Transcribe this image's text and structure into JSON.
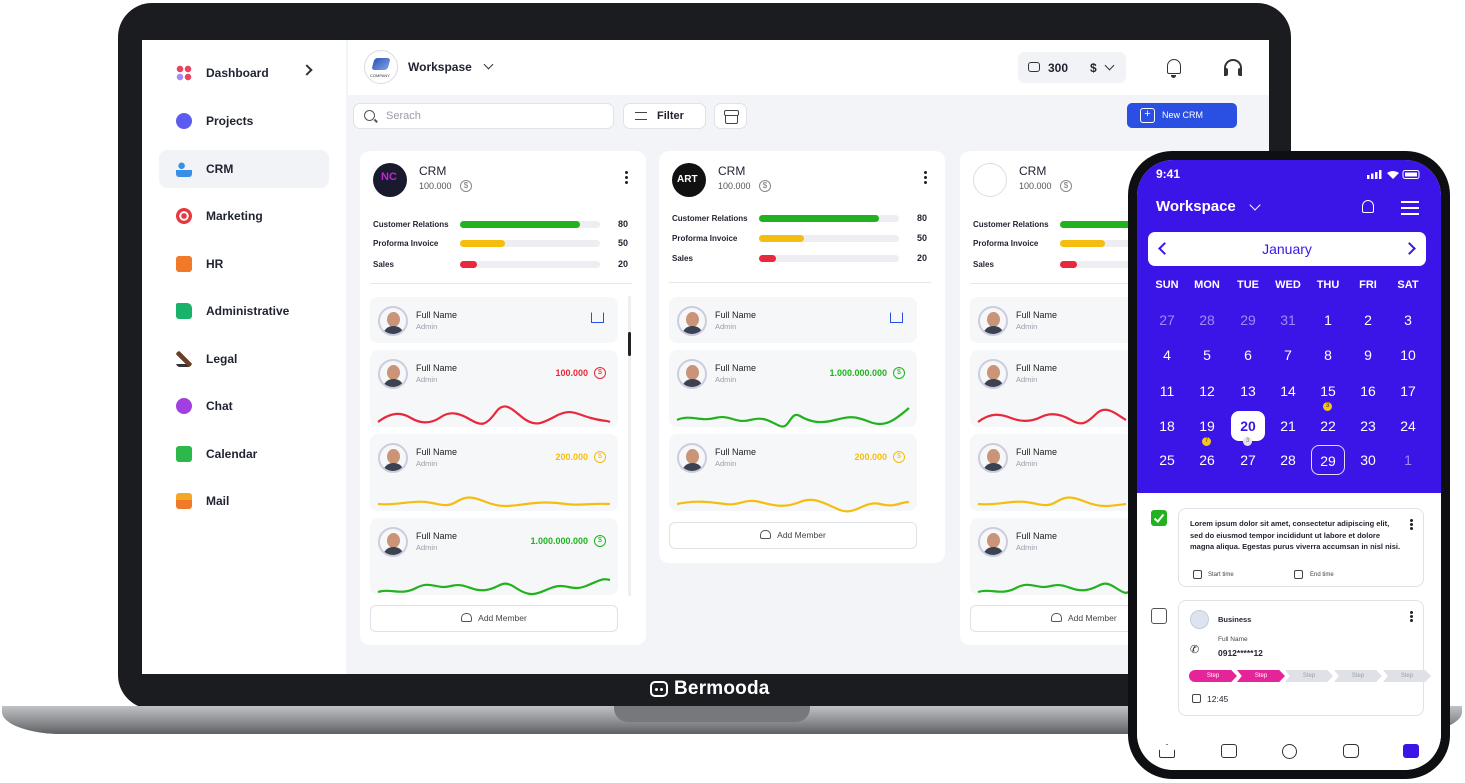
{
  "brand": "Bermooda",
  "sidebar": {
    "items": [
      {
        "label": "Dashboard",
        "icon": "dashboard-icon",
        "color": "#e94560"
      },
      {
        "label": "Projects",
        "icon": "projects-icon",
        "color": "#5b5bf0"
      },
      {
        "label": "CRM",
        "icon": "crm-icon",
        "color": "#3b8ee8"
      },
      {
        "label": "Marketing",
        "icon": "marketing-icon",
        "color": "#e8363d"
      },
      {
        "label": "HR",
        "icon": "hr-icon",
        "color": "#f07a28"
      },
      {
        "label": "Administrative",
        "icon": "folder-icon",
        "color": "#18b26b"
      },
      {
        "label": "Legal",
        "icon": "gavel-icon",
        "color": "#6b3e26"
      },
      {
        "label": "Chat",
        "icon": "chat-icon",
        "color": "#a23fe0"
      },
      {
        "label": "Calendar",
        "icon": "calendar-icon",
        "color": "#2cb84a"
      },
      {
        "label": "Mail",
        "icon": "mail-icon",
        "color": "#f5a623"
      }
    ]
  },
  "header": {
    "workspace": "Workspase",
    "balance": "300",
    "currency": "$"
  },
  "toolbar": {
    "search_placeholder": "Serach",
    "filter": "Filter",
    "new_crm": "New CRM"
  },
  "colors": {
    "accent": "#2a4fe3",
    "green": "#22b21f",
    "yellow": "#f5bd0f",
    "red": "#e8283b",
    "phone_bg": "#3b14e8"
  },
  "cards": [
    {
      "title": "CRM",
      "amount": "100.000",
      "coin": "$",
      "stats": [
        {
          "label": "Customer Relations",
          "value": "80",
          "pct": 0.86
        },
        {
          "label": "Proforma Invoice",
          "value": "50",
          "pct": 0.32
        },
        {
          "label": "Sales",
          "value": "20",
          "pct": 0.12
        }
      ],
      "members": [
        {
          "name": "Full Name",
          "role": "Admin"
        },
        {
          "name": "Full Name",
          "role": "Admin",
          "value": "100.000",
          "coin": "$"
        },
        {
          "name": "Full Name",
          "role": "Admin",
          "value": "200.000",
          "coin": "$"
        },
        {
          "name": "Full Name",
          "role": "Admin",
          "value": "1.000.000.000",
          "coin": "$"
        }
      ],
      "add_member": "Add Member"
    },
    {
      "title": "CRM",
      "amount": "100.000",
      "coin": "$",
      "logo_text": "ART",
      "stats": [
        {
          "label": "Customer Relations",
          "value": "80",
          "pct": 0.86
        },
        {
          "label": "Proforma Invoice",
          "value": "50",
          "pct": 0.32
        },
        {
          "label": "Sales",
          "value": "20",
          "pct": 0.12
        }
      ],
      "members": [
        {
          "name": "Full Name",
          "role": "Admin"
        },
        {
          "name": "Full Name",
          "role": "Admin",
          "value": "1.000.000.000",
          "coin": "$"
        },
        {
          "name": "Full Name",
          "role": "Admin",
          "value": "200.000",
          "coin": "$"
        }
      ],
      "add_member": "Add Member"
    },
    {
      "title": "CRM",
      "amount": "100.000",
      "coin": "$",
      "stats": [
        {
          "label": "Customer Relations"
        },
        {
          "label": "Proforma Invoice"
        },
        {
          "label": "Sales"
        }
      ],
      "members": [
        {
          "name": "Full Name",
          "role": "Admin"
        },
        {
          "name": "Full Name",
          "role": "Admin"
        },
        {
          "name": "Full Name",
          "role": "Admin"
        },
        {
          "name": "Full Name",
          "role": "Admin"
        }
      ],
      "add_member": "Add Member"
    }
  ],
  "phone": {
    "time": "9:41",
    "workspace": "Workspace",
    "month": "January",
    "weekdays": [
      "SUN",
      "MON",
      "TUE",
      "WED",
      "THU",
      "FRI",
      "SAT"
    ],
    "weeks": [
      [
        "27",
        "28",
        "29",
        "31",
        "1",
        "2",
        "3"
      ],
      [
        "4",
        "5",
        "6",
        "7",
        "8",
        "9",
        "10"
      ],
      [
        "11",
        "12",
        "13",
        "14",
        "15",
        "16",
        "17"
      ],
      [
        "18",
        "19",
        "20",
        "21",
        "22",
        "23",
        "24"
      ],
      [
        "25",
        "26",
        "27",
        "28",
        "29",
        "30",
        "1"
      ]
    ],
    "event_dots": {
      "d15": "3",
      "d19": "7",
      "d20": "3"
    },
    "task1": {
      "text": "Lorem ipsum dolor sit amet, consectetur adipiscing elit, sed do eiusmod tempor incididunt ut labore et dolore magna aliqua. Egestas purus viverra accumsan in nisl nisi.",
      "start": "Start time",
      "end": "End time"
    },
    "task2": {
      "title": "Business",
      "contact_label": "Full Name",
      "phone": "0912*****12",
      "steps": [
        "Step",
        "Step",
        "Step",
        "Step",
        "Step"
      ],
      "time": "12:45"
    }
  }
}
